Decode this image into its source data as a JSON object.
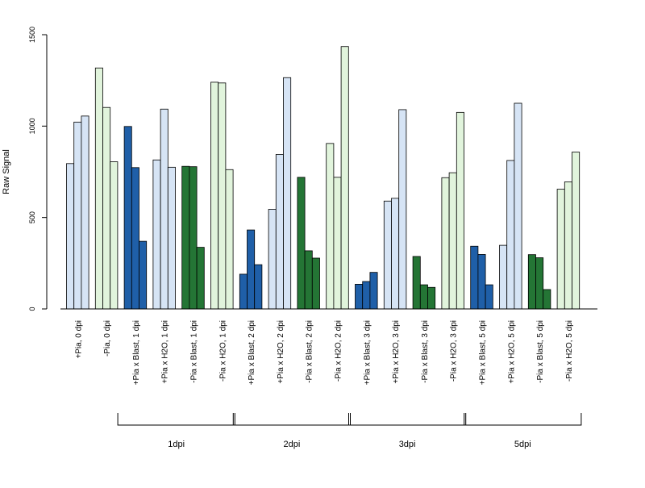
{
  "chart_data": {
    "type": "bar",
    "ylabel": "Raw Signal",
    "ylim": [
      0,
      1500
    ],
    "yticks": [
      0,
      500,
      1000,
      1500
    ],
    "grid": false,
    "legend": "none",
    "bars_per_group": 3,
    "groups": [
      {
        "label": "+Pia, 0 dpi",
        "color": "#d6e4f5",
        "values": [
          795,
          1022,
          1055
        ]
      },
      {
        "label": "-Pia, 0 dpi",
        "color": "#e1f4dc",
        "values": [
          1318,
          1102,
          805
        ]
      },
      {
        "label": "+Pia x Blast, 1 dpi",
        "color": "#1f5fa8",
        "values": [
          998,
          773,
          370
        ]
      },
      {
        "label": "+Pia x H2O, 1 dpi",
        "color": "#d6e4f5",
        "values": [
          815,
          1093,
          775
        ]
      },
      {
        "label": "-Pia x Blast, 1 dpi",
        "color": "#247535",
        "values": [
          780,
          778,
          337
        ]
      },
      {
        "label": "-Pia x H2O, 1 dpi",
        "color": "#e1f4dc",
        "values": [
          1240,
          1236,
          762
        ]
      },
      {
        "label": "+Pia x Blast, 2 dpi",
        "color": "#1f5fa8",
        "values": [
          190,
          432,
          242
        ]
      },
      {
        "label": "+Pia x H2O, 2 dpi",
        "color": "#d6e4f5",
        "values": [
          545,
          845,
          1265
        ]
      },
      {
        "label": "-Pia x Blast, 2 dpi",
        "color": "#247535",
        "values": [
          720,
          318,
          278
        ]
      },
      {
        "label": "-Pia x H2O, 2 dpi",
        "color": "#e1f4dc",
        "values": [
          905,
          720,
          1435
        ]
      },
      {
        "label": "+Pia x Blast, 3 dpi",
        "color": "#1f5fa8",
        "values": [
          135,
          150,
          200
        ]
      },
      {
        "label": "+Pia x H2O, 3 dpi",
        "color": "#d6e4f5",
        "values": [
          590,
          605,
          1090
        ]
      },
      {
        "label": "-Pia x Blast, 3 dpi",
        "color": "#247535",
        "values": [
          287,
          132,
          118
        ]
      },
      {
        "label": "-Pia x H2O, 3 dpi",
        "color": "#e1f4dc",
        "values": [
          718,
          745,
          1075
        ]
      },
      {
        "label": "+Pia x Blast, 5 dpi",
        "color": "#1f5fa8",
        "values": [
          343,
          298,
          132
        ]
      },
      {
        "label": "+Pia x H2O, 5 dpi",
        "color": "#d6e4f5",
        "values": [
          348,
          812,
          1125
        ]
      },
      {
        "label": "-Pia x Blast, 5 dpi",
        "color": "#247535",
        "values": [
          297,
          280,
          106
        ]
      },
      {
        "label": "-Pia x H2O, 5 dpi",
        "color": "#e1f4dc",
        "values": [
          655,
          695,
          858
        ]
      }
    ],
    "brackets": [
      {
        "label": "1dpi",
        "first_group": 2,
        "last_group": 5
      },
      {
        "label": "2dpi",
        "first_group": 6,
        "last_group": 9
      },
      {
        "label": "3dpi",
        "first_group": 10,
        "last_group": 13
      },
      {
        "label": "5dpi",
        "first_group": 14,
        "last_group": 17
      }
    ]
  }
}
